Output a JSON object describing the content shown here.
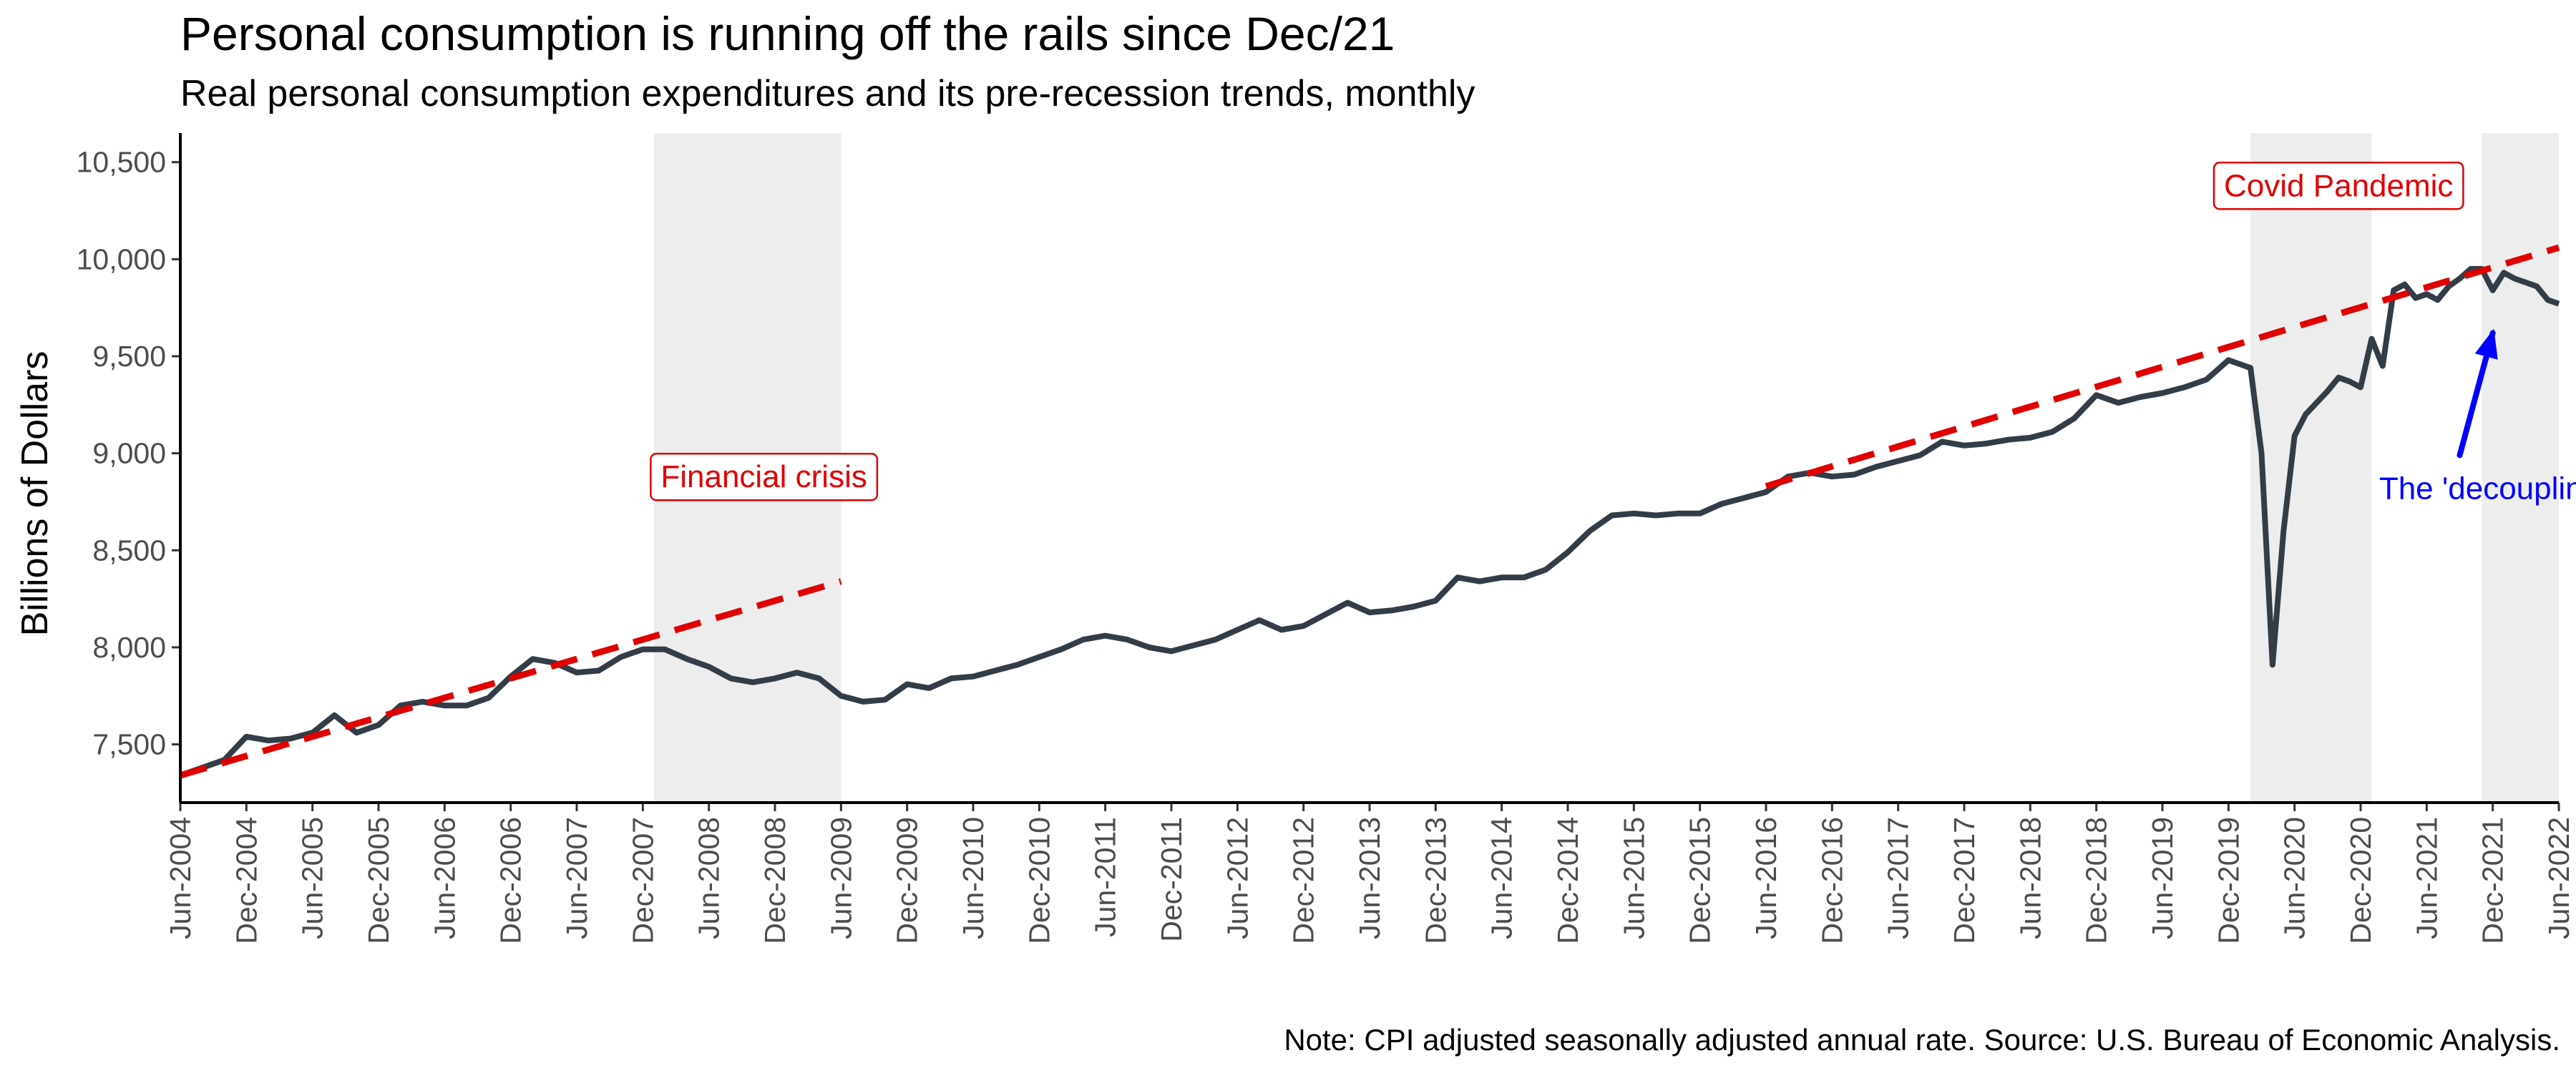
{
  "chart_data": {
    "type": "line",
    "title": "Personal consumption is running off the rails since Dec/21",
    "subtitle": "Real personal consumption expenditures and its pre-recession trends, monthly",
    "caption": "Note: CPI adjusted seasonally adjusted annual rate. Source: U.S. Bureau of Economic Analysis.",
    "ylabel": "Billions of Dollars",
    "xlabel": "",
    "x_range": [
      "2004-06",
      "2022-06"
    ],
    "ylim": [
      7200,
      10650
    ],
    "y_ticks": [
      7500,
      8000,
      8500,
      9000,
      9500,
      10000,
      10500
    ],
    "y_tick_labels": [
      "7,500",
      "8,000",
      "8,500",
      "9,000",
      "9,500",
      "10,000",
      "10,500"
    ],
    "x_tick_labels": [
      "Jun-2004",
      "Dec-2004",
      "Jun-2005",
      "Dec-2005",
      "Jun-2006",
      "Dec-2006",
      "Jun-2007",
      "Dec-2007",
      "Jun-2008",
      "Dec-2008",
      "Jun-2009",
      "Dec-2009",
      "Jun-2010",
      "Dec-2010",
      "Jun-2011",
      "Dec-2011",
      "Jun-2012",
      "Dec-2012",
      "Jun-2013",
      "Dec-2013",
      "Jun-2014",
      "Dec-2014",
      "Jun-2015",
      "Dec-2015",
      "Jun-2016",
      "Dec-2016",
      "Jun-2017",
      "Dec-2017",
      "Jun-2018",
      "Dec-2018",
      "Jun-2019",
      "Dec-2019",
      "Jun-2020",
      "Dec-2020",
      "Jun-2021",
      "Dec-2021",
      "Jun-2022"
    ],
    "grid": false,
    "series": [
      {
        "color": "#333d47",
        "style": "solid",
        "points": [
          [
            "2004-06",
            7340
          ],
          [
            "2004-08",
            7380
          ],
          [
            "2004-10",
            7420
          ],
          [
            "2004-12",
            7540
          ],
          [
            "2005-02",
            7520
          ],
          [
            "2005-04",
            7530
          ],
          [
            "2005-06",
            7560
          ],
          [
            "2005-08",
            7650
          ],
          [
            "2005-10",
            7560
          ],
          [
            "2005-12",
            7600
          ],
          [
            "2006-02",
            7700
          ],
          [
            "2006-04",
            7720
          ],
          [
            "2006-06",
            7700
          ],
          [
            "2006-08",
            7700
          ],
          [
            "2006-10",
            7740
          ],
          [
            "2006-12",
            7850
          ],
          [
            "2007-02",
            7940
          ],
          [
            "2007-04",
            7920
          ],
          [
            "2007-06",
            7870
          ],
          [
            "2007-08",
            7880
          ],
          [
            "2007-10",
            7950
          ],
          [
            "2007-12",
            7990
          ],
          [
            "2008-02",
            7990
          ],
          [
            "2008-04",
            7940
          ],
          [
            "2008-06",
            7900
          ],
          [
            "2008-08",
            7840
          ],
          [
            "2008-10",
            7820
          ],
          [
            "2008-12",
            7840
          ],
          [
            "2009-02",
            7870
          ],
          [
            "2009-04",
            7840
          ],
          [
            "2009-06",
            7750
          ],
          [
            "2009-08",
            7720
          ],
          [
            "2009-10",
            7730
          ],
          [
            "2009-12",
            7810
          ],
          [
            "2010-02",
            7790
          ],
          [
            "2010-04",
            7840
          ],
          [
            "2010-06",
            7850
          ],
          [
            "2010-08",
            7880
          ],
          [
            "2010-10",
            7910
          ],
          [
            "2010-12",
            7950
          ],
          [
            "2011-02",
            7990
          ],
          [
            "2011-04",
            8040
          ],
          [
            "2011-06",
            8060
          ],
          [
            "2011-08",
            8040
          ],
          [
            "2011-10",
            8000
          ],
          [
            "2011-12",
            7980
          ],
          [
            "2012-02",
            8010
          ],
          [
            "2012-04",
            8040
          ],
          [
            "2012-06",
            8090
          ],
          [
            "2012-08",
            8140
          ],
          [
            "2012-10",
            8090
          ],
          [
            "2012-12",
            8110
          ],
          [
            "2013-02",
            8170
          ],
          [
            "2013-04",
            8230
          ],
          [
            "2013-06",
            8180
          ],
          [
            "2013-08",
            8190
          ],
          [
            "2013-10",
            8210
          ],
          [
            "2013-12",
            8240
          ],
          [
            "2014-02",
            8360
          ],
          [
            "2014-04",
            8340
          ],
          [
            "2014-06",
            8360
          ],
          [
            "2014-08",
            8360
          ],
          [
            "2014-10",
            8400
          ],
          [
            "2014-12",
            8490
          ],
          [
            "2015-02",
            8600
          ],
          [
            "2015-04",
            8680
          ],
          [
            "2015-06",
            8690
          ],
          [
            "2015-08",
            8680
          ],
          [
            "2015-10",
            8690
          ],
          [
            "2015-12",
            8690
          ],
          [
            "2016-02",
            8740
          ],
          [
            "2016-04",
            8770
          ],
          [
            "2016-06",
            8800
          ],
          [
            "2016-08",
            8880
          ],
          [
            "2016-10",
            8900
          ],
          [
            "2016-12",
            8880
          ],
          [
            "2017-02",
            8890
          ],
          [
            "2017-04",
            8930
          ],
          [
            "2017-06",
            8960
          ],
          [
            "2017-08",
            8990
          ],
          [
            "2017-10",
            9060
          ],
          [
            "2017-12",
            9040
          ],
          [
            "2018-02",
            9050
          ],
          [
            "2018-04",
            9070
          ],
          [
            "2018-06",
            9080
          ],
          [
            "2018-08",
            9110
          ],
          [
            "2018-10",
            9180
          ],
          [
            "2018-12",
            9300
          ],
          [
            "2019-02",
            9260
          ],
          [
            "2019-04",
            9290
          ],
          [
            "2019-06",
            9310
          ],
          [
            "2019-08",
            9340
          ],
          [
            "2019-10",
            9380
          ],
          [
            "2019-12",
            9480
          ],
          [
            "2020-01",
            9460
          ],
          [
            "2020-02",
            9440
          ],
          [
            "2020-03",
            9000
          ],
          [
            "2020-04",
            7910
          ],
          [
            "2020-05",
            8600
          ],
          [
            "2020-06",
            9090
          ],
          [
            "2020-07",
            9200
          ],
          [
            "2020-08",
            9260
          ],
          [
            "2020-09",
            9320
          ],
          [
            "2020-10",
            9390
          ],
          [
            "2020-11",
            9370
          ],
          [
            "2020-12",
            9340
          ],
          [
            "2021-01",
            9590
          ],
          [
            "2021-02",
            9450
          ],
          [
            "2021-03",
            9840
          ],
          [
            "2021-04",
            9870
          ],
          [
            "2021-05",
            9800
          ],
          [
            "2021-06",
            9820
          ],
          [
            "2021-07",
            9790
          ],
          [
            "2021-08",
            9860
          ],
          [
            "2021-09",
            9900
          ],
          [
            "2021-10",
            9950
          ],
          [
            "2021-11",
            9950
          ],
          [
            "2021-12",
            9840
          ],
          [
            "2022-01",
            9930
          ],
          [
            "2022-02",
            9900
          ],
          [
            "2022-03",
            9880
          ],
          [
            "2022-04",
            9860
          ],
          [
            "2022-05",
            9790
          ],
          [
            "2022-06",
            9770
          ]
        ]
      },
      {
        "color": "#e00000",
        "style": "dashed",
        "points": [
          [
            "2004-06",
            7340
          ],
          [
            "2009-06",
            8340
          ]
        ]
      },
      {
        "color": "#e00000",
        "style": "dashed",
        "points": [
          [
            "2016-06",
            8830
          ],
          [
            "2022-06",
            10060
          ]
        ]
      }
    ],
    "shaded_regions": [
      {
        "start": "2008-01",
        "end": "2009-06",
        "color": "#ededed"
      },
      {
        "start": "2020-02",
        "end": "2021-01",
        "color": "#ededed"
      },
      {
        "start": "2021-11",
        "end": "2022-06",
        "color": "#ededed"
      }
    ],
    "annotations": [
      {
        "text": "Financial crisis",
        "x": "2008-11",
        "y": 8880,
        "color": "#e00000",
        "boxed": true
      },
      {
        "text": "Covid Pandemic",
        "x": "2020-10",
        "y": 10380,
        "color": "#e00000",
        "boxed": true
      },
      {
        "text": "The 'decoupling'",
        "x": "2021-12",
        "y": 8820,
        "color": "#0000ff",
        "boxed": false
      }
    ],
    "arrow": {
      "from": [
        "2021-09",
        8990
      ],
      "to": [
        "2021-12",
        9620
      ],
      "color": "#0000ff"
    }
  }
}
